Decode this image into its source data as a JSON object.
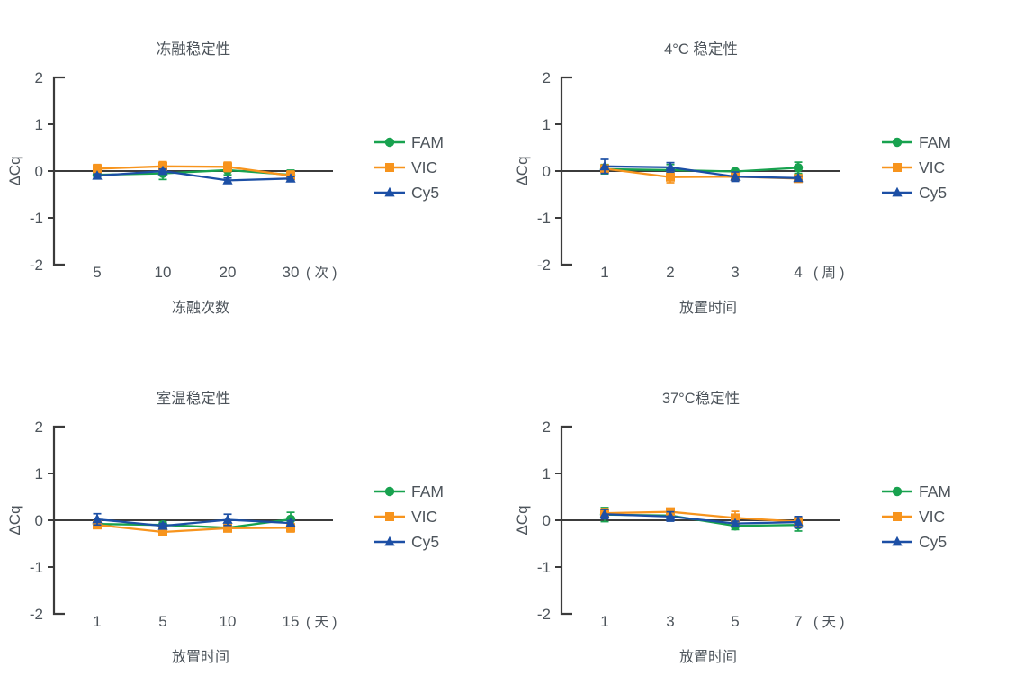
{
  "figure": {
    "background": "#ffffff",
    "description": "2x2 panel of qPCR stability line charts"
  },
  "colors": {
    "axis": "#3b3b3b",
    "text": "#4d545b",
    "fam": "#18a24f",
    "vic": "#f7941d",
    "cy5": "#1c4fa5"
  },
  "legend": {
    "items": [
      {
        "label": "FAM",
        "marker": "circle-icon",
        "color": "fam"
      },
      {
        "label": "VIC",
        "marker": "square-icon",
        "color": "vic"
      },
      {
        "label": "Cy5",
        "marker": "triangle-icon",
        "color": "cy5"
      }
    ],
    "position": "right"
  },
  "chart_data": [
    {
      "type": "line",
      "title": "冻融稳定性",
      "xlabel": "冻融次数",
      "ylabel": "ΔCq",
      "x_unit": "( 次 )",
      "categories": [
        "5",
        "10",
        "20",
        "30"
      ],
      "ylim": [
        -2,
        2
      ],
      "yticks": [
        2,
        1,
        0,
        -1,
        -2
      ],
      "grid": false,
      "legend_position": "right",
      "series": [
        {
          "name": "FAM",
          "marker": "circle",
          "color": "fam",
          "values": [
            -0.08,
            -0.05,
            0.02,
            -0.08
          ],
          "errors": [
            0.06,
            0.13,
            0.1,
            0.1
          ]
        },
        {
          "name": "VIC",
          "marker": "square",
          "color": "vic",
          "values": [
            0.05,
            0.1,
            0.09,
            -0.1
          ],
          "errors": [
            0.09,
            0.1,
            0.1,
            0.1
          ]
        },
        {
          "name": "Cy5",
          "marker": "triangle",
          "color": "cy5",
          "values": [
            -0.1,
            0.0,
            -0.2,
            -0.16
          ],
          "errors": [
            0.04,
            0.04,
            0.05,
            0.04
          ]
        }
      ]
    },
    {
      "type": "line",
      "title": "4°C 稳定性",
      "xlabel": "放置时间",
      "ylabel": "ΔCq",
      "x_unit": "( 周 )",
      "categories": [
        "1",
        "2",
        "3",
        "4"
      ],
      "ylim": [
        -2,
        2
      ],
      "yticks": [
        2,
        1,
        0,
        -1,
        -2
      ],
      "grid": false,
      "legend_position": "right",
      "series": [
        {
          "name": "FAM",
          "marker": "circle",
          "color": "fam",
          "values": [
            0.04,
            0.02,
            -0.01,
            0.07
          ],
          "errors": [
            0.1,
            0.12,
            0.04,
            0.12
          ]
        },
        {
          "name": "VIC",
          "marker": "square",
          "color": "vic",
          "values": [
            0.05,
            -0.13,
            -0.12,
            -0.16
          ],
          "errors": [
            0.07,
            0.12,
            0.04,
            0.05
          ]
        },
        {
          "name": "Cy5",
          "marker": "triangle",
          "color": "cy5",
          "values": [
            0.1,
            0.08,
            -0.12,
            -0.15
          ],
          "errors": [
            0.15,
            0.1,
            0.1,
            0.04
          ]
        }
      ]
    },
    {
      "type": "line",
      "title": "室温稳定性",
      "xlabel": "放置时间",
      "ylabel": "ΔCq",
      "x_unit": "( 天 )",
      "categories": [
        "1",
        "5",
        "10",
        "15"
      ],
      "ylim": [
        -2,
        2
      ],
      "yticks": [
        2,
        1,
        0,
        -1,
        -2
      ],
      "grid": false,
      "legend_position": "right",
      "series": [
        {
          "name": "FAM",
          "marker": "circle",
          "color": "fam",
          "values": [
            -0.08,
            -0.1,
            -0.16,
            0.02
          ],
          "errors": [
            0.05,
            0.06,
            0.06,
            0.15
          ]
        },
        {
          "name": "VIC",
          "marker": "square",
          "color": "vic",
          "values": [
            -0.1,
            -0.25,
            -0.17,
            -0.16
          ],
          "errors": [
            0.05,
            0.07,
            0.05,
            0.09
          ]
        },
        {
          "name": "Cy5",
          "marker": "triangle",
          "color": "cy5",
          "values": [
            0.02,
            -0.12,
            0.01,
            -0.06
          ],
          "errors": [
            0.12,
            0.05,
            0.12,
            0.05
          ]
        }
      ]
    },
    {
      "type": "line",
      "title": "37°C稳定性",
      "xlabel": "放置时间",
      "ylabel": "ΔCq",
      "x_unit": "( 天 )",
      "categories": [
        "1",
        "3",
        "5",
        "7"
      ],
      "ylim": [
        -2,
        2
      ],
      "yticks": [
        2,
        1,
        0,
        -1,
        -2
      ],
      "grid": false,
      "legend_position": "right",
      "series": [
        {
          "name": "FAM",
          "marker": "circle",
          "color": "fam",
          "values": [
            0.12,
            0.1,
            -0.12,
            -0.1
          ],
          "errors": [
            0.15,
            0.08,
            0.08,
            0.13
          ]
        },
        {
          "name": "VIC",
          "marker": "square",
          "color": "vic",
          "values": [
            0.15,
            0.18,
            0.05,
            -0.03
          ],
          "errors": [
            0.1,
            0.06,
            0.14,
            0.09
          ]
        },
        {
          "name": "Cy5",
          "marker": "triangle",
          "color": "cy5",
          "values": [
            0.13,
            0.08,
            -0.07,
            -0.04
          ],
          "errors": [
            0.1,
            0.1,
            0.05,
            0.12
          ]
        }
      ]
    }
  ]
}
